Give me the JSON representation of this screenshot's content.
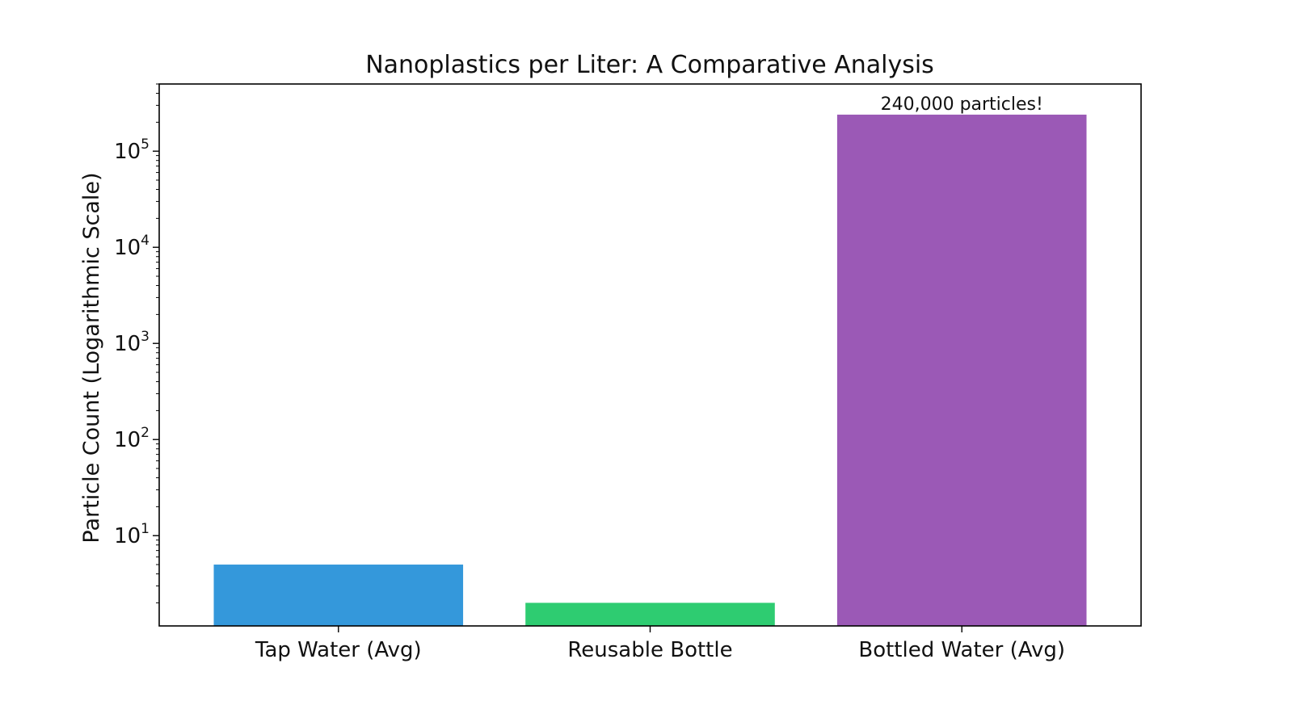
{
  "chart_data": {
    "type": "bar",
    "title": "Nanoplastics per Liter: A Comparative Analysis",
    "xlabel": "",
    "ylabel": "Particle Count (Logarithmic Scale)",
    "yscale": "log",
    "ylim": [
      1.15,
      500000
    ],
    "grid": false,
    "categories": [
      "Tap Water (Avg)",
      "Reusable Bottle",
      "Bottled Water (Avg)"
    ],
    "values": [
      5,
      2,
      240000
    ],
    "colors": [
      "#3498db",
      "#2ecc71",
      "#9b59b6"
    ],
    "y_ticks": [
      {
        "base": "10",
        "exp": "1",
        "value": 10
      },
      {
        "base": "10",
        "exp": "2",
        "value": 100
      },
      {
        "base": "10",
        "exp": "3",
        "value": 1000
      },
      {
        "base": "10",
        "exp": "4",
        "value": 10000
      },
      {
        "base": "10",
        "exp": "5",
        "value": 100000
      }
    ],
    "annotations": [
      {
        "category": "Bottled Water (Avg)",
        "text": "240,000 particles!"
      }
    ]
  }
}
